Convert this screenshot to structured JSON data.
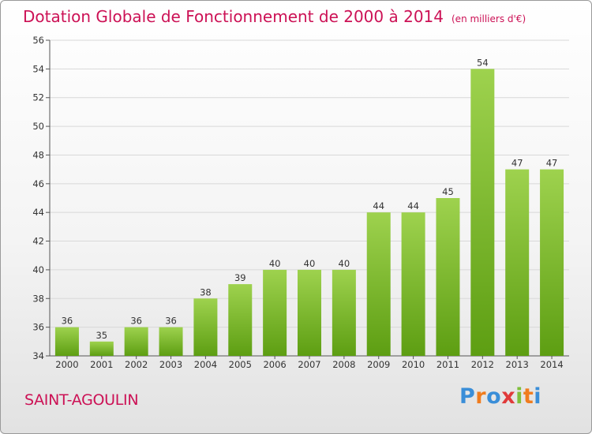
{
  "title": "Dotation Globale de Fonctionnement de 2000 à 2014",
  "unit_note": "(en milliers d'€)",
  "commune": "SAINT-AGOULIN",
  "brand": {
    "text": "Proxiti",
    "letter_colors": [
      "#3a8ed8",
      "#f07c1e",
      "#3a8ed8",
      "#e03a3a",
      "#7fbf3a",
      "#f07c1e",
      "#3a8ed8"
    ]
  },
  "colors": {
    "title": "#cc1155",
    "bar_light": "#9ed24e",
    "bar_dark": "#5d9e12",
    "grid": "#d8d8d8"
  },
  "chart_data": {
    "type": "bar",
    "title": "Dotation Globale de Fonctionnement de 2000 à 2014",
    "subtitle": "(en milliers d'€)",
    "xlabel": "",
    "ylabel": "",
    "categories": [
      "2000",
      "2001",
      "2002",
      "2003",
      "2004",
      "2005",
      "2006",
      "2007",
      "2008",
      "2009",
      "2010",
      "2011",
      "2012",
      "2013",
      "2014"
    ],
    "values": [
      36,
      35,
      36,
      36,
      38,
      39,
      40,
      40,
      40,
      44,
      44,
      45,
      54,
      47,
      47
    ],
    "ylim": [
      34,
      56
    ],
    "yticks": [
      34,
      36,
      38,
      40,
      42,
      44,
      46,
      48,
      50,
      52,
      54,
      56
    ],
    "grid": true,
    "data_labels": true
  }
}
